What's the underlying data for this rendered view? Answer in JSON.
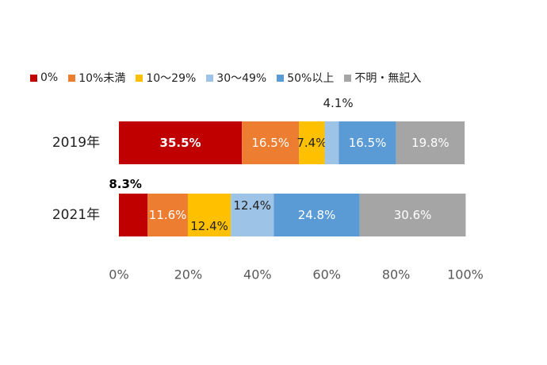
{
  "chart_data": {
    "type": "bar",
    "orientation": "horizontal",
    "stacked": "percent",
    "categories": [
      "2019年",
      "2021年"
    ],
    "series": [
      {
        "name": "0%",
        "color": "#C00000",
        "values": [
          35.5,
          8.3
        ],
        "labels": [
          "35.5%",
          "8.3%"
        ]
      },
      {
        "name": "10%未満",
        "color": "#ED7D31",
        "values": [
          16.5,
          11.6
        ],
        "labels": [
          "16.5%",
          "11.6%"
        ]
      },
      {
        "name": "10～29%",
        "color": "#FFC000",
        "values": [
          7.4,
          12.4
        ],
        "labels": [
          "7.4%",
          "12.4%"
        ]
      },
      {
        "name": "30～49%",
        "color": "#9DC3E6",
        "values": [
          4.1,
          12.4
        ],
        "labels": [
          "4.1%",
          "12.4%"
        ]
      },
      {
        "name": "50%以上",
        "color": "#5B9BD5",
        "values": [
          16.5,
          24.8
        ],
        "labels": [
          "16.5%",
          "24.8%"
        ]
      },
      {
        "name": "不明・無記入",
        "color": "#A5A5A5",
        "values": [
          19.8,
          30.6
        ],
        "labels": [
          "19.8%",
          "30.6%"
        ]
      }
    ],
    "xlim": [
      0,
      100
    ],
    "x_ticks": [
      "0%",
      "20%",
      "40%",
      "60%",
      "80%",
      "100%"
    ],
    "grid": false,
    "legend_position": "top"
  }
}
